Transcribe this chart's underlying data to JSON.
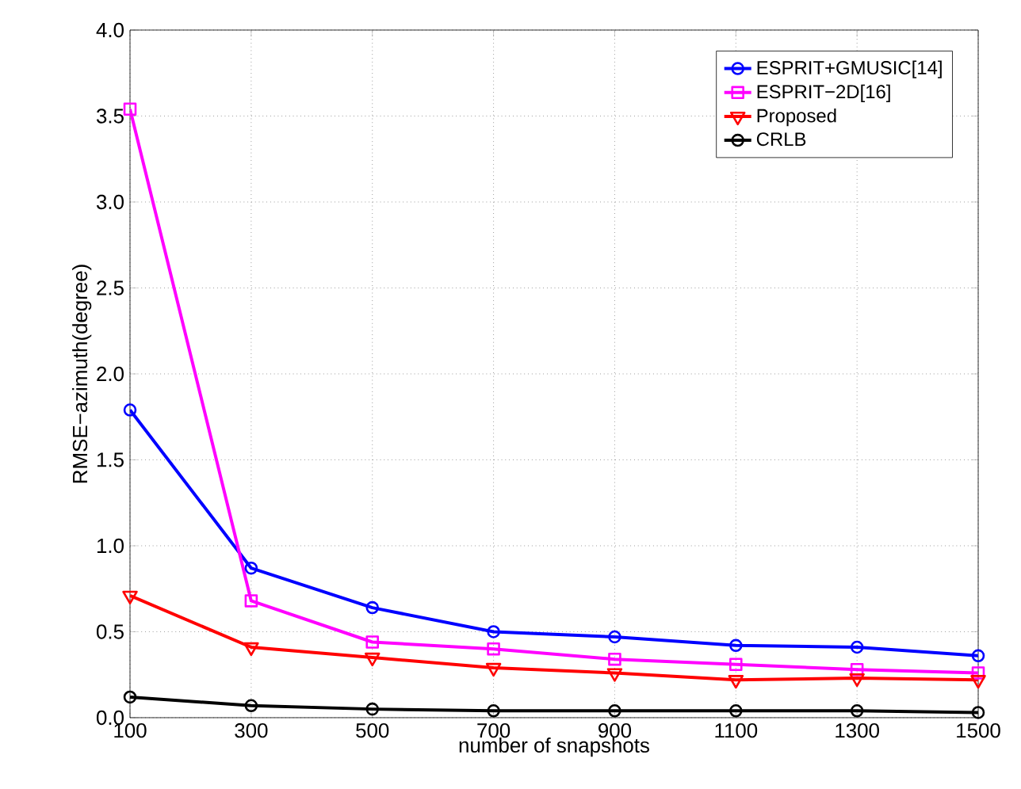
{
  "chart_data": {
    "type": "line",
    "xlabel": "number of snapshots",
    "ylabel": "RMSE−azimuth(degree)",
    "x": [
      100,
      300,
      500,
      700,
      900,
      1100,
      1300,
      1500
    ],
    "xlim": [
      100,
      1500
    ],
    "xticks": [
      100,
      300,
      500,
      700,
      900,
      1100,
      1300,
      1500
    ],
    "ylim": [
      0,
      4
    ],
    "yticks": [
      {
        "value": 0,
        "label": "0.0"
      },
      0.5,
      {
        "value": 1,
        "label": "1.0"
      },
      1.5,
      {
        "value": 2,
        "label": "2.0"
      },
      2.5,
      {
        "value": 3,
        "label": "3.0"
      },
      3.5,
      {
        "value": 4,
        "label": "4.0"
      }
    ],
    "grid": true,
    "legend": "top right",
    "line_style": "solid",
    "series": [
      {
        "name": "ESPRIT+GMUSIC[14]",
        "color": "#0000ff",
        "marker": "circle",
        "values": [
          1.79,
          0.87,
          0.64,
          0.5,
          0.47,
          0.42,
          0.41,
          0.36
        ]
      },
      {
        "name": "ESPRIT−2D[16]",
        "color": "#ff00ff",
        "marker": "square",
        "values": [
          3.54,
          0.68,
          0.44,
          0.4,
          0.34,
          0.31,
          0.28,
          0.26
        ]
      },
      {
        "name": "Proposed",
        "color": "#ff0000",
        "marker": "triangle",
        "values": [
          0.71,
          0.41,
          0.35,
          0.29,
          0.26,
          0.22,
          0.23,
          0.22
        ]
      },
      {
        "name": "CRLB",
        "color": "#000000",
        "marker": "circle",
        "values": [
          0.12,
          0.07,
          0.05,
          0.04,
          0.04,
          0.04,
          0.04,
          0.03
        ]
      }
    ]
  }
}
